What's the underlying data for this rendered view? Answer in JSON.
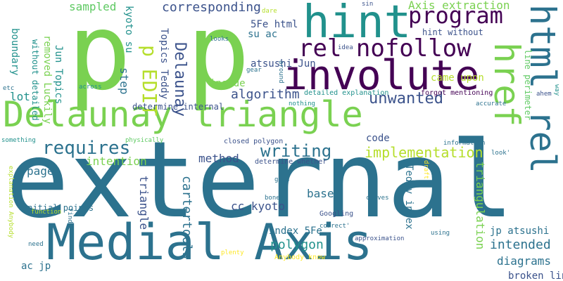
{
  "background": "#ffffff",
  "palette": [
    "#440154",
    "#3b528b",
    "#21918c",
    "#5ec962",
    "#fde725",
    "#2c728e",
    "#7ad151"
  ],
  "words": [
    {
      "text": "external",
      "color": "#2c728e"
    },
    {
      "text": "Medial Axis",
      "color": "#2c728e"
    },
    {
      "text": "Delaunay triangle",
      "color": "#7ad151"
    },
    {
      "text": "p",
      "color": "#7ad151"
    },
    {
      "text": "p",
      "color": "#7ad151"
    },
    {
      "text": "involute",
      "color": "#440154"
    },
    {
      "text": "hint",
      "color": "#21918c"
    },
    {
      "text": "href",
      "color": "#7ad151"
    },
    {
      "text": "html rel",
      "color": "#2c728e"
    },
    {
      "text": "rel nofollow",
      "color": "#440154"
    },
    {
      "text": "program",
      "color": "#440154"
    },
    {
      "text": "writing",
      "color": "#2c728e"
    },
    {
      "text": "requires",
      "color": "#2c728e"
    },
    {
      "text": "implementation",
      "color": "#b5de2b"
    },
    {
      "text": "unwanted",
      "color": "#3b528b"
    },
    {
      "text": "corresponding",
      "color": "#3b528b"
    },
    {
      "text": "Axis extraction",
      "color": "#7ad151"
    },
    {
      "text": "p EDIT",
      "color": "#b5de2b"
    },
    {
      "text": "Delaunay",
      "color": "#3b528b"
    },
    {
      "text": "sampled",
      "color": "#5ec962"
    },
    {
      "text": "boundary",
      "color": "#21918c"
    },
    {
      "text": "algorithm",
      "color": "#3b528b"
    },
    {
      "text": "triangulation",
      "color": "#7ad151"
    },
    {
      "text": "intended",
      "color": "#2c728e"
    },
    {
      "text": "polygon",
      "color": "#21918c"
    },
    {
      "text": "method",
      "color": "#3b528b"
    },
    {
      "text": "code",
      "color": "#3b528b"
    },
    {
      "text": "diagrams",
      "color": "#2c728e"
    },
    {
      "text": "triangle",
      "color": "#3b528b"
    },
    {
      "text": "cartertools",
      "color": "#2c728e"
    },
    {
      "text": "cc kyoto",
      "color": "#3b528b"
    },
    {
      "text": "intention",
      "color": "#7ad151"
    },
    {
      "text": "page",
      "color": "#2c728e"
    },
    {
      "text": "based",
      "color": "#2c728e"
    },
    {
      "text": "index 5Fe",
      "color": "#2c728e"
    },
    {
      "text": "jp atsushi",
      "color": "#2c728e"
    },
    {
      "text": "Teddy index",
      "color": "#2c728e"
    },
    {
      "text": "lot",
      "color": "#21918c"
    },
    {
      "text": "step",
      "color": "#2c728e"
    },
    {
      "text": "inside",
      "color": "#7ad151"
    },
    {
      "text": "came upon",
      "color": "#b5de2b"
    },
    {
      "text": "atsushi Jun",
      "color": "#3b528b"
    },
    {
      "text": "su ac",
      "color": "#2c728e"
    },
    {
      "text": "5Fe html",
      "color": "#3b528b"
    },
    {
      "text": "hint without",
      "color": "#3b528b"
    },
    {
      "text": "determine internal",
      "color": "#3b528b"
    },
    {
      "text": "Topics Teddy",
      "color": "#3b528b"
    },
    {
      "text": "kyoto su",
      "color": "#21918c"
    },
    {
      "text": "Jun Topics",
      "color": "#21918c"
    },
    {
      "text": "removed Luckily",
      "color": "#7ad151"
    },
    {
      "text": "without detailed",
      "color": "#21918c"
    },
    {
      "text": "detailed explanation",
      "color": "#21918c"
    },
    {
      "text": "forgot mentioning",
      "color": "#440154"
    },
    {
      "text": "line perimeter",
      "color": "#5ec962"
    },
    {
      "text": "broken line",
      "color": "#3b528b"
    },
    {
      "text": "initial points",
      "color": "#2c728e"
    },
    {
      "text": "ac jp",
      "color": "#2c728e"
    },
    {
      "text": "Anybody know",
      "color": "#fde725"
    },
    {
      "text": "closed polygon",
      "color": "#3b528b"
    },
    {
      "text": "determine whether",
      "color": "#3b528b"
    },
    {
      "text": "Googling",
      "color": "#3b528b"
    },
    {
      "text": "approximation",
      "color": "#3b528b"
    },
    {
      "text": "using",
      "color": "#2c728e"
    },
    {
      "text": "curves",
      "color": "#2c728e"
    },
    {
      "text": "bones",
      "color": "#2c728e"
    },
    {
      "text": "gets",
      "color": "#2c728e"
    },
    {
      "text": "plenty",
      "color": "#fde725"
    },
    {
      "text": "correct'",
      "color": "#2c728e"
    },
    {
      "text": "information",
      "color": "#2c728e"
    },
    {
      "text": "accurate",
      "color": "#2c728e"
    },
    {
      "text": "nothing",
      "color": "#21918c"
    },
    {
      "text": "physically",
      "color": "#5ec962"
    },
    {
      "text": "something",
      "color": "#21918c"
    },
    {
      "text": "across",
      "color": "#21918c"
    },
    {
      "text": "etc",
      "color": "#2c728e"
    },
    {
      "text": "looks",
      "color": "#2c728e"
    },
    {
      "text": "dare",
      "color": "#b5de2b"
    },
    {
      "text": "sin",
      "color": "#3b528b"
    },
    {
      "text": "idea",
      "color": "#3b528b"
    },
    {
      "text": "gear",
      "color": "#2c728e"
    },
    {
      "text": "around",
      "color": "#2c728e"
    },
    {
      "text": "ahem",
      "color": "#3b528b"
    },
    {
      "text": "way",
      "color": "#21918c"
    },
    {
      "text": "look'",
      "color": "#2c728e"
    },
    {
      "text": "draft",
      "color": "#fde725"
    },
    {
      "text": "function",
      "color": "#b5de2b"
    },
    {
      "text": "explanation Anybody",
      "color": "#b5de2b"
    },
    {
      "text": "find",
      "color": "#2c728e"
    },
    {
      "text": "need",
      "color": "#2c728e"
    }
  ]
}
